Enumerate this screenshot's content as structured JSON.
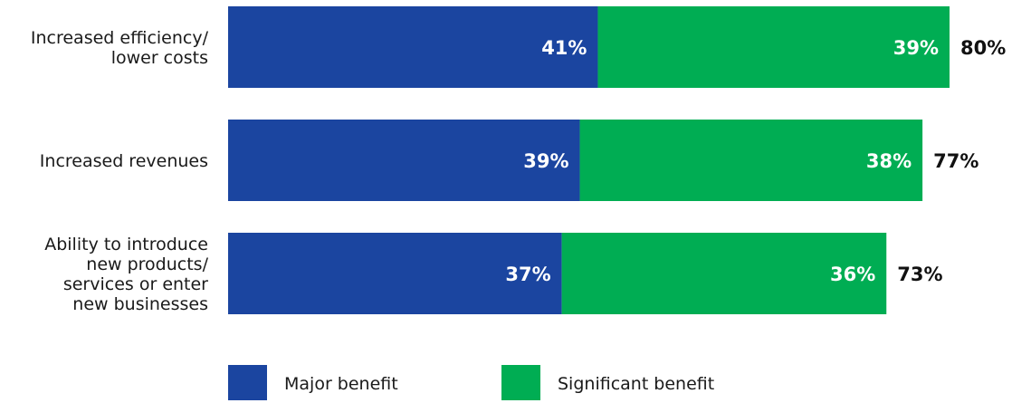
{
  "chart_data": {
    "type": "bar",
    "orientation": "horizontal",
    "stacked": true,
    "categories": [
      [
        "Increased efficiency/",
        "lower costs"
      ],
      [
        "Increased revenues"
      ],
      [
        "Ability to introduce",
        "new products/",
        "services or enter",
        "new businesses"
      ]
    ],
    "series": [
      {
        "name": "Major benefit",
        "color": "#1b45a0",
        "values": [
          41,
          39,
          37
        ],
        "labels": [
          "41%",
          "39%",
          "37%"
        ]
      },
      {
        "name": "Significant benefit",
        "color": "#00ad53",
        "values": [
          39,
          38,
          36
        ],
        "labels": [
          "39%",
          "38%",
          "36%"
        ]
      }
    ],
    "totals": [
      80,
      77,
      73
    ],
    "total_labels": [
      "80%",
      "77%",
      "73%"
    ],
    "xlim": [
      0,
      80
    ],
    "grid": false,
    "legend_position": "bottom"
  }
}
